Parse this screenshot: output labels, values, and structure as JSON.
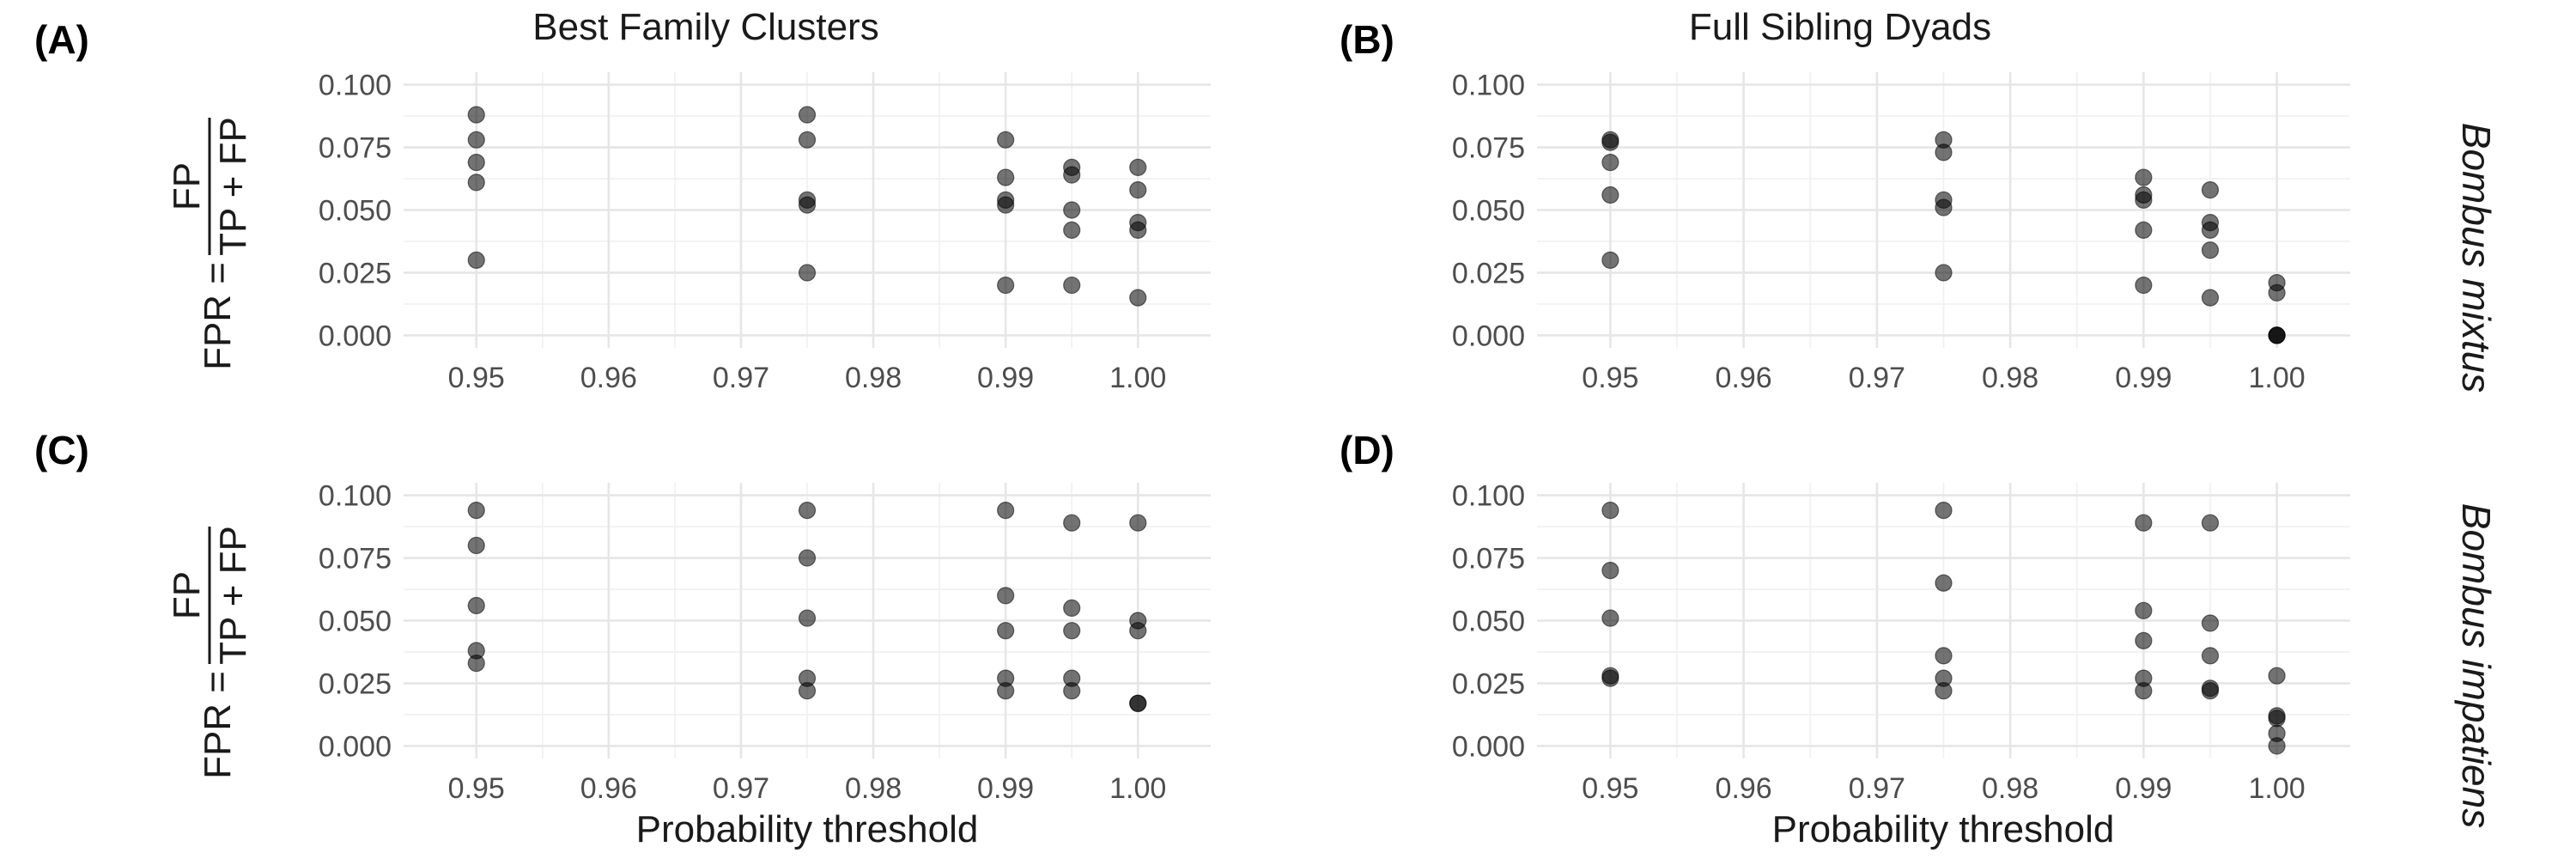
{
  "figure": {
    "column_titles": [
      "Best Family Clusters",
      "Full Sibling Dyads"
    ],
    "row_strips": [
      "Bombus mixtus",
      "Bombus impatiens"
    ],
    "x_axis_title": "Probability threshold",
    "y_axis_title": {
      "prefix": "FPR =",
      "numerator": "FP",
      "denominator": "TP + FP"
    },
    "x_ticks": [
      "0.95",
      "0.96",
      "0.97",
      "0.98",
      "0.99",
      "1.00"
    ],
    "y_ticks": [
      "0.000",
      "0.025",
      "0.050",
      "0.075",
      "0.100"
    ]
  },
  "chart_data": [
    {
      "type": "scatter",
      "panel": "(A)",
      "xlim": [
        0.9445,
        1.0055
      ],
      "ylim": [
        -0.005,
        0.105
      ],
      "points": [
        [
          0.95,
          0.088
        ],
        [
          0.95,
          0.078
        ],
        [
          0.95,
          0.069
        ],
        [
          0.95,
          0.061
        ],
        [
          0.95,
          0.03
        ],
        [
          0.975,
          0.088
        ],
        [
          0.975,
          0.078
        ],
        [
          0.975,
          0.054
        ],
        [
          0.975,
          0.052
        ],
        [
          0.975,
          0.025
        ],
        [
          0.99,
          0.078
        ],
        [
          0.99,
          0.063
        ],
        [
          0.99,
          0.054
        ],
        [
          0.99,
          0.052
        ],
        [
          0.99,
          0.02
        ],
        [
          0.995,
          0.067
        ],
        [
          0.995,
          0.064
        ],
        [
          0.995,
          0.05
        ],
        [
          0.995,
          0.042
        ],
        [
          0.995,
          0.02
        ],
        [
          1.0,
          0.067
        ],
        [
          1.0,
          0.058
        ],
        [
          1.0,
          0.045
        ],
        [
          1.0,
          0.042
        ],
        [
          1.0,
          0.015
        ]
      ]
    },
    {
      "type": "scatter",
      "panel": "(B)",
      "xlim": [
        0.9445,
        1.0055
      ],
      "ylim": [
        -0.005,
        0.105
      ],
      "points": [
        [
          0.95,
          0.078
        ],
        [
          0.95,
          0.077
        ],
        [
          0.95,
          0.069
        ],
        [
          0.95,
          0.056
        ],
        [
          0.95,
          0.03
        ],
        [
          0.975,
          0.078
        ],
        [
          0.975,
          0.073
        ],
        [
          0.975,
          0.054
        ],
        [
          0.975,
          0.051
        ],
        [
          0.975,
          0.025
        ],
        [
          0.99,
          0.063
        ],
        [
          0.99,
          0.056
        ],
        [
          0.99,
          0.054
        ],
        [
          0.99,
          0.042
        ],
        [
          0.99,
          0.02
        ],
        [
          0.995,
          0.058
        ],
        [
          0.995,
          0.045
        ],
        [
          0.995,
          0.042
        ],
        [
          0.995,
          0.034
        ],
        [
          0.995,
          0.015
        ],
        [
          1.0,
          0.021
        ],
        [
          1.0,
          0.017
        ],
        [
          1.0,
          0.0
        ],
        [
          1.0,
          0.0
        ],
        [
          1.0,
          0.0
        ]
      ]
    },
    {
      "type": "scatter",
      "panel": "(C)",
      "xlim": [
        0.9445,
        1.0055
      ],
      "ylim": [
        -0.005,
        0.105
      ],
      "points": [
        [
          0.95,
          0.094
        ],
        [
          0.95,
          0.08
        ],
        [
          0.95,
          0.056
        ],
        [
          0.95,
          0.038
        ],
        [
          0.95,
          0.033
        ],
        [
          0.975,
          0.094
        ],
        [
          0.975,
          0.075
        ],
        [
          0.975,
          0.051
        ],
        [
          0.975,
          0.027
        ],
        [
          0.975,
          0.022
        ],
        [
          0.99,
          0.094
        ],
        [
          0.99,
          0.06
        ],
        [
          0.99,
          0.046
        ],
        [
          0.99,
          0.027
        ],
        [
          0.99,
          0.022
        ],
        [
          0.995,
          0.089
        ],
        [
          0.995,
          0.055
        ],
        [
          0.995,
          0.046
        ],
        [
          0.995,
          0.027
        ],
        [
          0.995,
          0.022
        ],
        [
          1.0,
          0.089
        ],
        [
          1.0,
          0.05
        ],
        [
          1.0,
          0.046
        ],
        [
          1.0,
          0.017
        ],
        [
          1.0,
          0.017
        ]
      ]
    },
    {
      "type": "scatter",
      "panel": "(D)",
      "xlim": [
        0.9445,
        1.0055
      ],
      "ylim": [
        -0.005,
        0.105
      ],
      "points": [
        [
          0.95,
          0.094
        ],
        [
          0.95,
          0.07
        ],
        [
          0.95,
          0.051
        ],
        [
          0.95,
          0.028
        ],
        [
          0.95,
          0.027
        ],
        [
          0.975,
          0.094
        ],
        [
          0.975,
          0.065
        ],
        [
          0.975,
          0.036
        ],
        [
          0.975,
          0.027
        ],
        [
          0.975,
          0.022
        ],
        [
          0.99,
          0.089
        ],
        [
          0.99,
          0.054
        ],
        [
          0.99,
          0.042
        ],
        [
          0.99,
          0.027
        ],
        [
          0.99,
          0.022
        ],
        [
          0.995,
          0.089
        ],
        [
          0.995,
          0.049
        ],
        [
          0.995,
          0.036
        ],
        [
          0.995,
          0.023
        ],
        [
          0.995,
          0.022
        ],
        [
          1.0,
          0.028
        ],
        [
          1.0,
          0.012
        ],
        [
          1.0,
          0.011
        ],
        [
          1.0,
          0.005
        ],
        [
          1.0,
          0.0
        ]
      ]
    }
  ]
}
